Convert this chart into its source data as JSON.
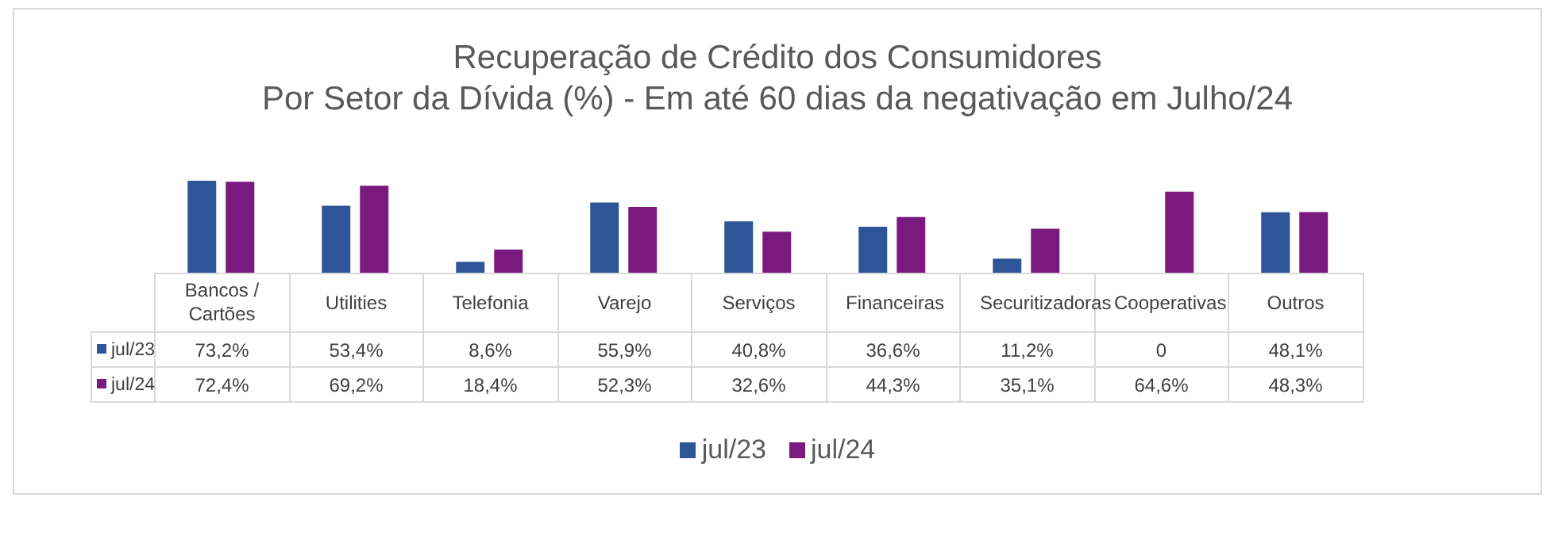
{
  "chart_data": {
    "type": "bar",
    "title": "Recuperação de Crédito dos Consumidores",
    "subtitle": "Por Setor da Dívida (%) - Em até 60 dias da negativação em Julho/24",
    "categories": [
      "Bancos / Cartões",
      "Utilities",
      "Telefonia",
      "Varejo",
      "Serviços",
      "Financeiras",
      "Securitizadoras",
      "Cooperativas",
      "Outros"
    ],
    "series": [
      {
        "name": "jul/23",
        "color": "#2e5597",
        "values": [
          73.2,
          53.4,
          8.6,
          55.9,
          40.8,
          36.6,
          11.2,
          0,
          48.1
        ],
        "value_labels": [
          "73,2%",
          "53,4%",
          "8,6%",
          "55,9%",
          "40,8%",
          "36,6%",
          "11,2%",
          "0",
          "48,1%"
        ]
      },
      {
        "name": "jul/24",
        "color": "#7b1a7e",
        "values": [
          72.4,
          69.2,
          18.4,
          52.3,
          32.6,
          44.3,
          35.1,
          64.6,
          48.3
        ],
        "value_labels": [
          "72,4%",
          "69,2%",
          "18,4%",
          "52,3%",
          "32,6%",
          "44,3%",
          "35,1%",
          "64,6%",
          "48,3%"
        ]
      }
    ],
    "legend": "bottom",
    "grid": false
  }
}
